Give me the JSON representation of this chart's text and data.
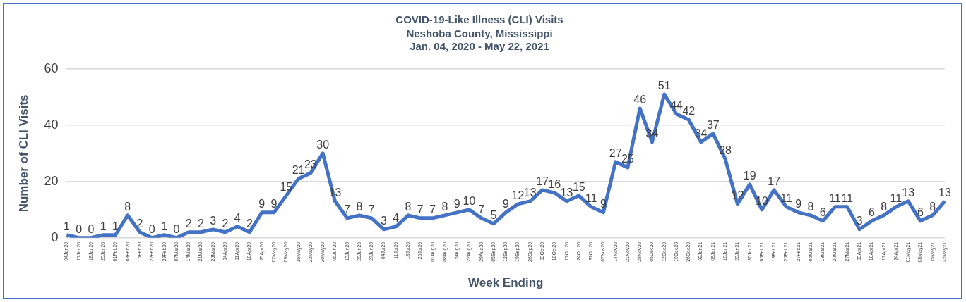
{
  "chart_data": {
    "type": "line",
    "title": "COVID-19-Like Illness (CLI) Visits",
    "subtitle": "Neshoba County, Mississippi\nJan. 04, 2020 - May 22, 2021",
    "xlabel": "Week Ending",
    "ylabel": "Number of CLI Visits",
    "categories": [
      "04Jan20",
      "11Jan20",
      "18Jan20",
      "25Jan20",
      "01Feb20",
      "08Feb20",
      "15Feb20",
      "22Feb20",
      "29Feb20",
      "07Mar20",
      "14Mar20",
      "21Mar20",
      "28Mar20",
      "04Apr20",
      "11Apr20",
      "18Apr20",
      "25Apr20",
      "02May20",
      "09May20",
      "16May20",
      "23May20",
      "30May20",
      "06Jun20",
      "13Jun20",
      "20Jun20",
      "27Jun20",
      "04Jul20",
      "11Jul20",
      "18Jul20",
      "25Jul20",
      "01Aug20",
      "08Aug20",
      "15Aug20",
      "22Aug20",
      "29Aug20",
      "05Sep20",
      "12Sep20",
      "19Sep20",
      "26Sep20",
      "03Oct20",
      "10Oct20",
      "17Oct20",
      "24Oct20",
      "31Oct20",
      "07Nov20",
      "14Nov20",
      "21Nov20",
      "28Nov20",
      "05Dec20",
      "12Dec20",
      "19Dec20",
      "26Dec20",
      "02Jan21",
      "09Jan21",
      "16Jan21",
      "23Jan21",
      "30Jan21",
      "06Feb21",
      "13Feb21",
      "20Feb21",
      "27Feb21",
      "06Mar21",
      "13Mar21",
      "20Mar21",
      "27Mar21",
      "03Apr21",
      "10Apr21",
      "17Apr21",
      "24Apr21",
      "01May21",
      "08May21",
      "15May21",
      "22May21"
    ],
    "series": [
      {
        "color": "#4472c4",
        "values": [
          1,
          0,
          0,
          1,
          1,
          8,
          2,
          0,
          1,
          0,
          2,
          2,
          3,
          2,
          4,
          2,
          9,
          9,
          15,
          21,
          23,
          30,
          13,
          7,
          8,
          7,
          3,
          4,
          8,
          7,
          7,
          8,
          9,
          10,
          7,
          5,
          9,
          12,
          13,
          17,
          16,
          13,
          15,
          11,
          9,
          27,
          25,
          46,
          34,
          51,
          44,
          42,
          34,
          37,
          28,
          12,
          19,
          10,
          17,
          11,
          9,
          8,
          6,
          11,
          11,
          3,
          6,
          8,
          11,
          13,
          6,
          8,
          13
        ]
      }
    ],
    "ylim": [
      0,
      60
    ],
    "yticks": [
      0,
      20,
      40,
      60
    ],
    "grid": "y",
    "legend": false,
    "marker": "none",
    "line_style": "solid",
    "data_labels": true
  }
}
